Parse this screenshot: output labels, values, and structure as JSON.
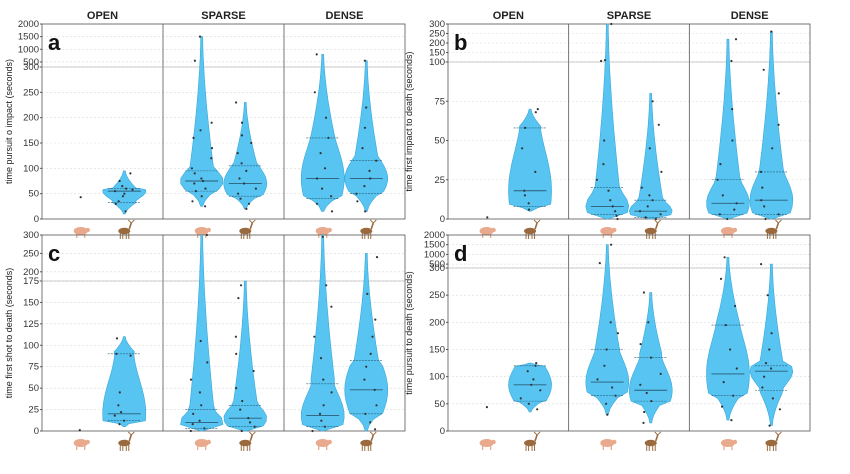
{
  "colors": {
    "violin": "#58c4f2",
    "dot": "#333333",
    "axis": "#555555",
    "grid": "#d9d9d9",
    "pig": "#e8a98d",
    "deer": "#9a6a3e"
  },
  "x_icons": [
    "pig-icon",
    "deer-icon"
  ],
  "chart_data": [
    {
      "type": "violin",
      "panel": "a",
      "ylabel": "time pursuit o impact (seconds)",
      "habitats": [
        "OPEN",
        "SPARSE",
        "DENSE"
      ],
      "axis": {
        "lower": [
          0,
          300
        ],
        "upper": [
          300,
          2000
        ],
        "lower_ticks": [
          "0",
          "50",
          "100",
          "150",
          "200",
          "250",
          "300"
        ],
        "upper_ticks": [
          "500",
          "1000",
          "1500",
          "2000"
        ]
      },
      "series": [
        {
          "habitat": "OPEN",
          "animal": "pig",
          "min": 43,
          "max": 43,
          "quartiles": [],
          "points": [
            43
          ]
        },
        {
          "habitat": "OPEN",
          "animal": "deer",
          "min": 10,
          "max": 95,
          "quartiles": [
            33,
            55,
            60
          ],
          "points": [
            15,
            30,
            35,
            45,
            50,
            55,
            58,
            60,
            65,
            75,
            90
          ]
        },
        {
          "habitat": "SPARSE",
          "animal": "pig",
          "min": 25,
          "max": 1500,
          "quartiles": [
            55,
            75,
            95
          ],
          "points": [
            25,
            35,
            45,
            55,
            60,
            70,
            75,
            80,
            90,
            100,
            120,
            140,
            160,
            175,
            190,
            550,
            1500
          ]
        },
        {
          "habitat": "SPARSE",
          "animal": "deer",
          "min": 20,
          "max": 230,
          "quartiles": [
            45,
            70,
            105
          ],
          "points": [
            20,
            30,
            40,
            50,
            60,
            70,
            80,
            95,
            110,
            130,
            150,
            165,
            190,
            230
          ]
        },
        {
          "habitat": "DENSE",
          "animal": "pig",
          "min": 15,
          "max": 800,
          "quartiles": [
            40,
            80,
            160
          ],
          "points": [
            15,
            30,
            45,
            60,
            80,
            100,
            130,
            160,
            200,
            250,
            800
          ]
        },
        {
          "habitat": "DENSE",
          "animal": "deer",
          "min": 15,
          "max": 550,
          "quartiles": [
            50,
            80,
            115
          ],
          "points": [
            15,
            35,
            50,
            65,
            80,
            95,
            115,
            140,
            180,
            220,
            550
          ]
        }
      ]
    },
    {
      "type": "violin",
      "panel": "b",
      "ylabel": "time first impact to death (seconds)",
      "habitats": [
        "OPEN",
        "SPARSE",
        "DENSE"
      ],
      "axis": {
        "lower": [
          0,
          100
        ],
        "upper": [
          100,
          300
        ],
        "lower_ticks": [
          "0",
          "25",
          "50",
          "75",
          "100"
        ],
        "upper_ticks": [
          "150",
          "200",
          "250",
          "300"
        ]
      },
      "series": [
        {
          "habitat": "OPEN",
          "animal": "pig",
          "min": 1,
          "max": 2,
          "quartiles": [],
          "points": [
            1
          ]
        },
        {
          "habitat": "OPEN",
          "animal": "deer",
          "min": 5,
          "max": 70,
          "quartiles": [
            8,
            18,
            58
          ],
          "points": [
            6,
            10,
            15,
            18,
            30,
            45,
            58,
            68,
            70
          ]
        },
        {
          "habitat": "SPARSE",
          "animal": "pig",
          "min": 0,
          "max": 300,
          "quartiles": [
            3,
            8,
            20
          ],
          "points": [
            0,
            2,
            5,
            8,
            12,
            18,
            25,
            35,
            50,
            105,
            110,
            300
          ]
        },
        {
          "habitat": "SPARSE",
          "animal": "deer",
          "min": 0,
          "max": 80,
          "quartiles": [
            1,
            5,
            12
          ],
          "points": [
            0,
            1,
            3,
            5,
            8,
            12,
            15,
            20,
            30,
            45,
            60,
            75
          ]
        },
        {
          "habitat": "DENSE",
          "animal": "pig",
          "min": 0,
          "max": 220,
          "quartiles": [
            3,
            10,
            25
          ],
          "points": [
            0,
            3,
            6,
            10,
            15,
            25,
            35,
            50,
            70,
            105,
            220
          ]
        },
        {
          "habitat": "DENSE",
          "animal": "deer",
          "min": 0,
          "max": 260,
          "quartiles": [
            3,
            12,
            30
          ],
          "points": [
            0,
            3,
            8,
            12,
            20,
            30,
            45,
            60,
            80,
            95,
            260
          ]
        }
      ]
    },
    {
      "type": "violin",
      "panel": "c",
      "ylabel": "time first shot to death (seconds)",
      "habitats": [
        "OPEN",
        "SPARSE",
        "DENSE"
      ],
      "axis": {
        "lower": [
          0,
          175
        ],
        "upper": [
          175,
          300
        ],
        "lower_ticks": [
          "0",
          "25",
          "50",
          "75",
          "100",
          "125",
          "150",
          "175"
        ],
        "upper_ticks": [
          "200",
          "250",
          "300"
        ]
      },
      "series": [
        {
          "habitat": "OPEN",
          "animal": "pig",
          "min": 0,
          "max": 2,
          "quartiles": [],
          "points": [
            1
          ]
        },
        {
          "habitat": "OPEN",
          "animal": "deer",
          "min": 5,
          "max": 110,
          "quartiles": [
            12,
            20,
            90
          ],
          "points": [
            8,
            12,
            18,
            22,
            30,
            45,
            88,
            90,
            108
          ]
        },
        {
          "habitat": "SPARSE",
          "animal": "pig",
          "min": 0,
          "max": 310,
          "quartiles": [
            3,
            10,
            25
          ],
          "points": [
            0,
            3,
            8,
            12,
            20,
            30,
            45,
            60,
            80,
            105,
            310
          ]
        },
        {
          "habitat": "SPARSE",
          "animal": "deer",
          "min": 0,
          "max": 175,
          "quartiles": [
            5,
            15,
            30
          ],
          "points": [
            0,
            5,
            10,
            15,
            25,
            35,
            50,
            70,
            90,
            110,
            155,
            170
          ]
        },
        {
          "habitat": "DENSE",
          "animal": "pig",
          "min": 0,
          "max": 300,
          "quartiles": [
            5,
            18,
            55
          ],
          "points": [
            0,
            5,
            12,
            20,
            30,
            45,
            60,
            85,
            110,
            145,
            170,
            295
          ]
        },
        {
          "habitat": "DENSE",
          "animal": "deer",
          "min": 0,
          "max": 250,
          "quartiles": [
            20,
            48,
            82
          ],
          "points": [
            2,
            10,
            20,
            30,
            48,
            60,
            75,
            90,
            110,
            130,
            160,
            240
          ]
        }
      ]
    },
    {
      "type": "violin",
      "panel": "d",
      "ylabel": "time pursuit to death (seconds)",
      "habitats": [
        "OPEN",
        "SPARSE",
        "DENSE"
      ],
      "axis": {
        "lower": [
          0,
          300
        ],
        "upper": [
          300,
          2000
        ],
        "lower_ticks": [
          "0",
          "50",
          "100",
          "150",
          "200",
          "250",
          "300"
        ],
        "upper_ticks": [
          "500",
          "1000",
          "1500",
          "2000"
        ]
      },
      "series": [
        {
          "habitat": "OPEN",
          "animal": "pig",
          "min": 44,
          "max": 44,
          "quartiles": [],
          "points": [
            44
          ]
        },
        {
          "habitat": "OPEN",
          "animal": "deer",
          "min": 35,
          "max": 125,
          "quartiles": [
            55,
            85,
            120
          ],
          "points": [
            40,
            50,
            60,
            75,
            85,
            95,
            110,
            120,
            125
          ]
        },
        {
          "habitat": "SPARSE",
          "animal": "pig",
          "min": 30,
          "max": 1500,
          "quartiles": [
            65,
            90,
            150
          ],
          "points": [
            30,
            50,
            65,
            80,
            95,
            120,
            150,
            180,
            200,
            550,
            1500
          ]
        },
        {
          "habitat": "SPARSE",
          "animal": "deer",
          "min": 15,
          "max": 255,
          "quartiles": [
            55,
            75,
            135
          ],
          "points": [
            15,
            35,
            55,
            70,
            85,
            105,
            135,
            160,
            200,
            255
          ]
        },
        {
          "habitat": "DENSE",
          "animal": "pig",
          "min": 20,
          "max": 850,
          "quartiles": [
            65,
            105,
            195
          ],
          "points": [
            20,
            45,
            65,
            90,
            115,
            150,
            195,
            230,
            280,
            850
          ]
        },
        {
          "habitat": "DENSE",
          "animal": "deer",
          "min": 10,
          "max": 500,
          "quartiles": [
            75,
            110,
            120
          ],
          "points": [
            10,
            40,
            60,
            80,
            100,
            115,
            125,
            150,
            180,
            250,
            500
          ]
        }
      ]
    }
  ]
}
